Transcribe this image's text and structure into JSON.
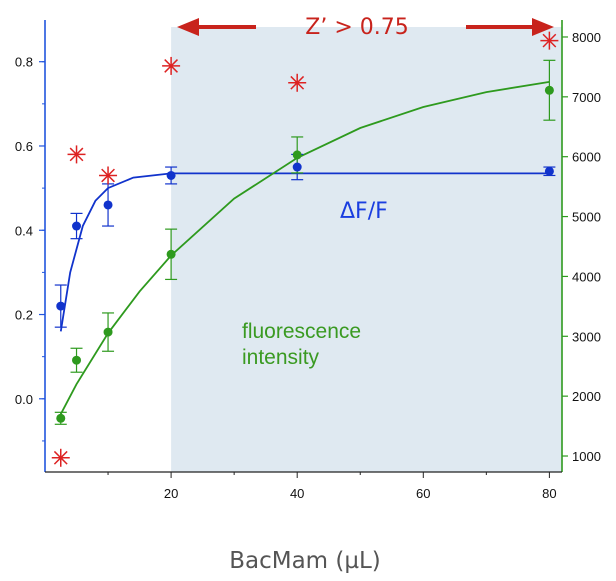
{
  "chart_data": {
    "type": "scatter",
    "xlabel": "BacMam (µL)",
    "xlim": [
      0,
      82
    ],
    "x_ticks": [
      20,
      40,
      60,
      80
    ],
    "y_left": {
      "range": [
        -0.15,
        0.88
      ],
      "ticks": [
        0.0,
        0.2,
        0.4,
        0.6,
        0.8
      ],
      "color": "#2255dd"
    },
    "y_right": {
      "range": [
        900,
        8150
      ],
      "ticks": [
        1000,
        2000,
        3000,
        4000,
        5000,
        6000,
        7000,
        8000
      ],
      "color": "#2e9a1e"
    },
    "shaded_region": {
      "x_from": 20,
      "x_to": 80,
      "color": "#dfe9f1"
    },
    "series": [
      {
        "name": "ΔF/F",
        "axis": "left",
        "color": "#1133cc",
        "points": [
          {
            "x": 2.5,
            "y": 0.22,
            "err": 0.05
          },
          {
            "x": 5,
            "y": 0.41,
            "err": 0.03
          },
          {
            "x": 10,
            "y": 0.46,
            "err": 0.05
          },
          {
            "x": 20,
            "y": 0.53,
            "err": 0.02
          },
          {
            "x": 40,
            "y": 0.55,
            "err": 0.03
          },
          {
            "x": 80,
            "y": 0.54,
            "err": 0.01
          }
        ],
        "fit": [
          [
            2.5,
            0.16
          ],
          [
            4,
            0.3
          ],
          [
            6,
            0.41
          ],
          [
            8,
            0.47
          ],
          [
            10,
            0.5
          ],
          [
            14,
            0.525
          ],
          [
            20,
            0.535
          ],
          [
            40,
            0.535
          ],
          [
            80,
            0.535
          ]
        ]
      },
      {
        "name": "fluorescence intensity",
        "axis": "right",
        "color": "#2e9a1e",
        "points": [
          {
            "x": 2.5,
            "y": 1630,
            "err": 100
          },
          {
            "x": 5,
            "y": 2600,
            "err": 200
          },
          {
            "x": 10,
            "y": 3070,
            "err": 320
          },
          {
            "x": 20,
            "y": 4370,
            "err": 420
          },
          {
            "x": 40,
            "y": 6030,
            "err": 300
          },
          {
            "x": 80,
            "y": 7110,
            "err": 500
          }
        ],
        "fit": [
          [
            2.5,
            1700
          ],
          [
            5,
            2200
          ],
          [
            10,
            3050
          ],
          [
            15,
            3750
          ],
          [
            20,
            4350
          ],
          [
            30,
            5300
          ],
          [
            40,
            5980
          ],
          [
            50,
            6480
          ],
          [
            60,
            6830
          ],
          [
            70,
            7080
          ],
          [
            80,
            7250
          ]
        ]
      },
      {
        "name": "Z'",
        "axis": "left",
        "color": "#dd2222",
        "marker": "asterisk",
        "points": [
          {
            "x": 2.5,
            "y": -0.14
          },
          {
            "x": 5,
            "y": 0.58
          },
          {
            "x": 10,
            "y": 0.53
          },
          {
            "x": 20,
            "y": 0.79
          },
          {
            "x": 40,
            "y": 0.75
          },
          {
            "x": 80,
            "y": 0.85
          }
        ]
      }
    ],
    "annotations": {
      "zprime": "Z’ > 0.75",
      "dff": "ΔF/F",
      "fluor_line1": "fluorescence",
      "fluor_line2": "intensity"
    },
    "annotation_colors": {
      "red": "#c8231c",
      "blue": "#1a3ee0",
      "green": "#3a9a22"
    }
  }
}
